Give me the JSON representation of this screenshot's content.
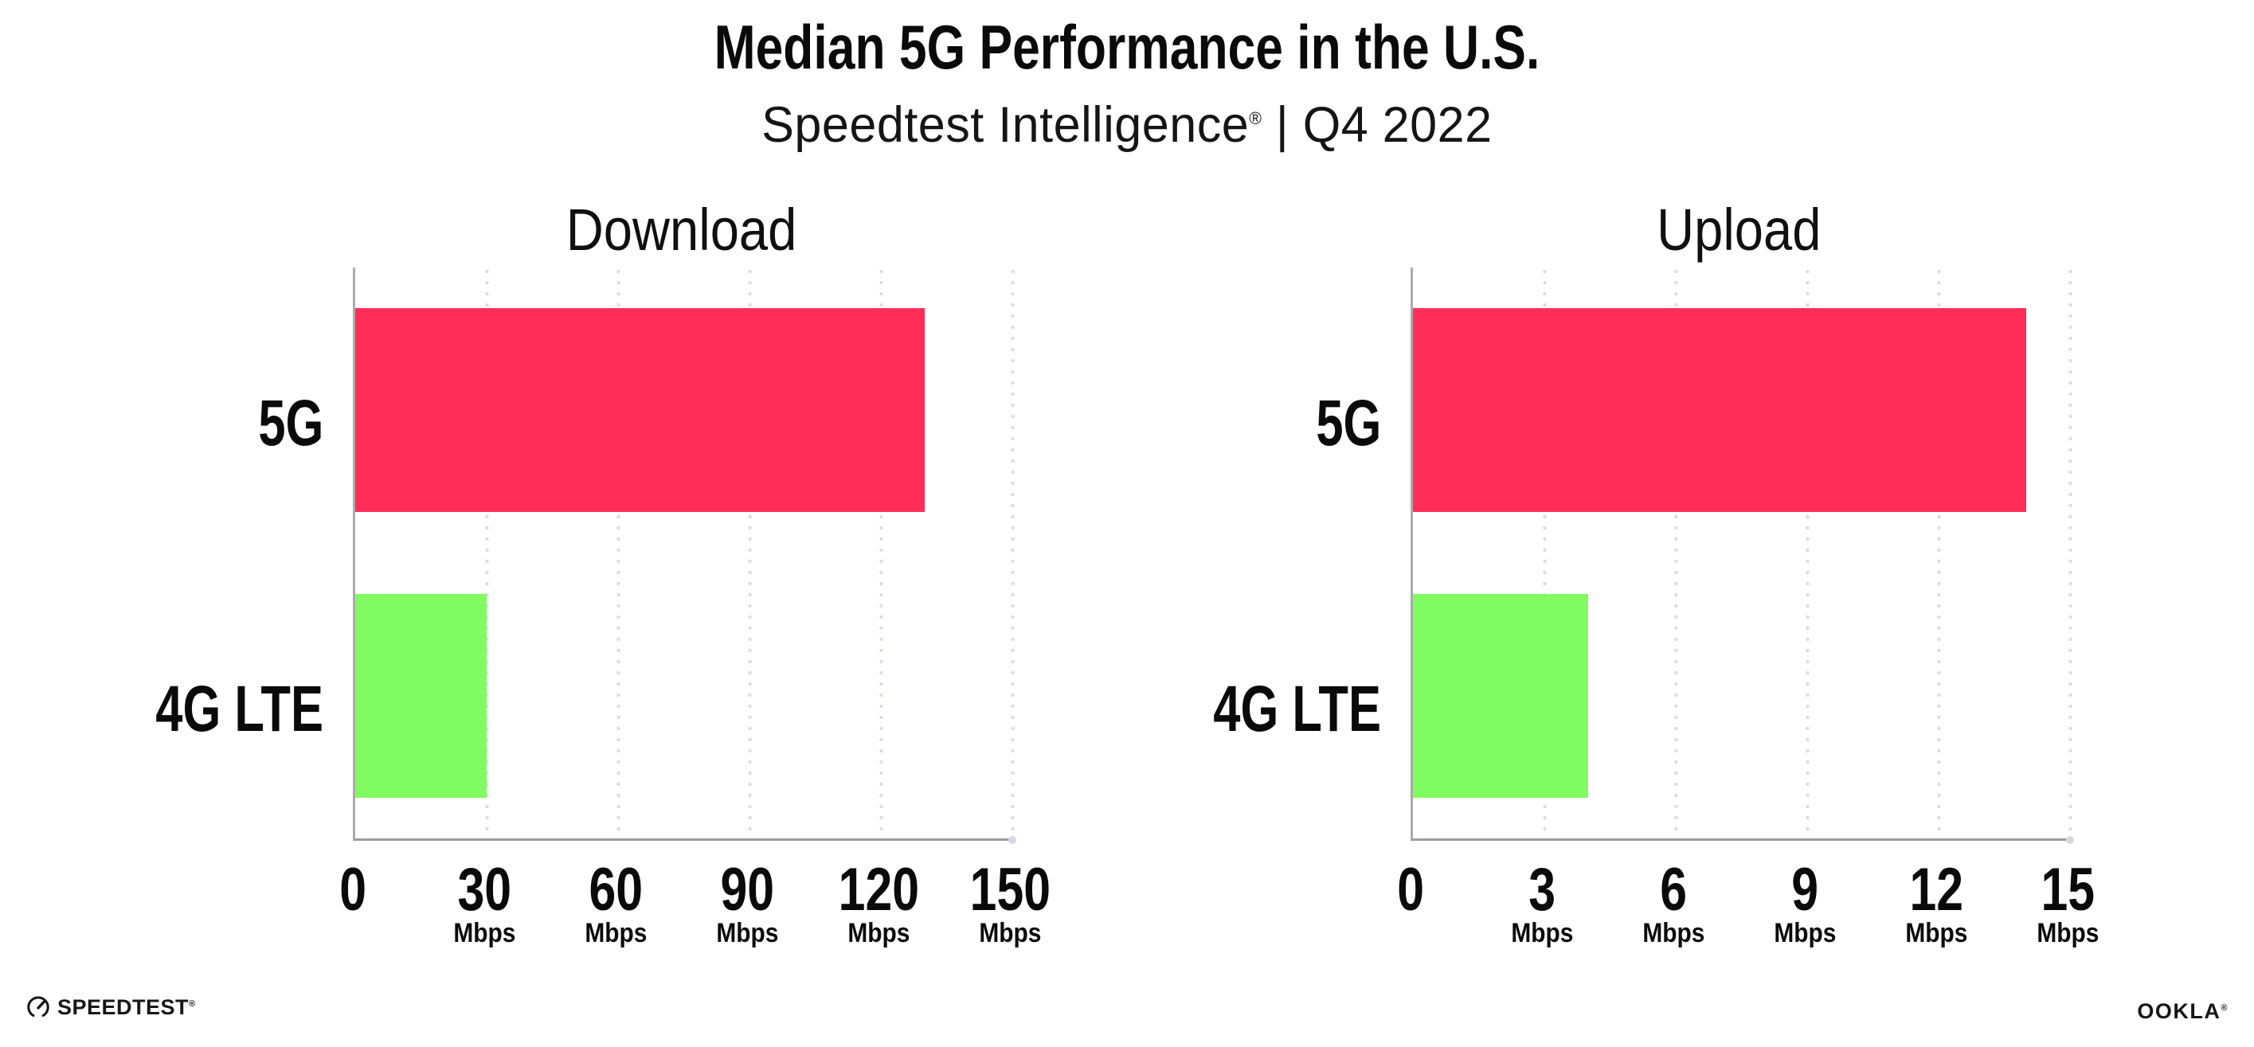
{
  "page": {
    "background": "#ffffff"
  },
  "header": {
    "title": "Median 5G Performance in the U.S.",
    "subtitle": {
      "brand": "Speedtest Intelligence",
      "registered_mark": "®",
      "separator": " | ",
      "period": "Q4 2022"
    }
  },
  "chart_data": [
    {
      "type": "bar",
      "orientation": "horizontal",
      "title": "Download",
      "unit": "Mbps",
      "categories": [
        "5G",
        "4G LTE"
      ],
      "values": [
        130,
        30
      ],
      "xlim": [
        0,
        150
      ],
      "xticks": [
        0,
        30,
        60,
        90,
        120,
        150
      ],
      "bar_colors": [
        "#FF2D58",
        "#80FB62"
      ],
      "grid": "dotted-vertical",
      "legend": "none"
    },
    {
      "type": "bar",
      "orientation": "horizontal",
      "title": "Upload",
      "unit": "Mbps",
      "categories": [
        "5G",
        "4G LTE"
      ],
      "values": [
        14,
        4
      ],
      "xlim": [
        0,
        15
      ],
      "xticks": [
        0,
        3,
        6,
        9,
        12,
        15
      ],
      "bar_colors": [
        "#FF2D58",
        "#80FB62"
      ],
      "grid": "dotted-vertical",
      "legend": "none"
    }
  ],
  "footer": {
    "speedtest": {
      "icon": "gauge-icon",
      "text": "SPEEDTEST",
      "mark": "®"
    },
    "ookla": {
      "text": "OOKLA",
      "mark": "®"
    }
  },
  "colors": {
    "bar_5g": "#FF2D58",
    "bar_4g": "#80FB62",
    "axis_line": "#9D9DA3",
    "grid_dots": "#DCDCE8",
    "text": "#0A0A0A"
  }
}
